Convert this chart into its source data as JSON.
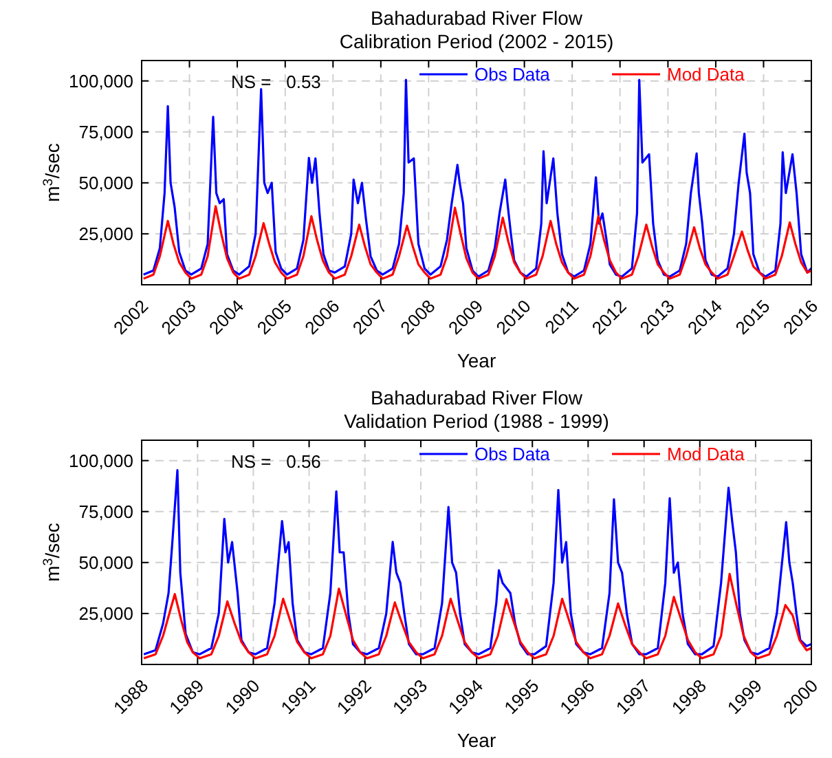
{
  "chart_data": [
    {
      "type": "line",
      "title": "Bahadurabad River Flow",
      "subtitle": "Calibration Period (2002 - 2015)",
      "xlabel": "Year",
      "ylabel": "m$^{3}$/sec",
      "annotations": [
        "NS =   0.53"
      ],
      "xlim": [
        "2002-01-01",
        "2016-01-01"
      ],
      "xticks": [
        "2002",
        "2003",
        "2004",
        "2005",
        "2006",
        "2007",
        "2008",
        "2009",
        "2010",
        "2011",
        "2012",
        "2013",
        "2014",
        "2015",
        "2016"
      ],
      "ylim": [
        0,
        110000
      ],
      "yticks": [
        {
          "value": 25000,
          "label": "25,000"
        },
        {
          "value": 50000,
          "label": "50,000"
        },
        {
          "value": 75000,
          "label": "75,000"
        },
        {
          "value": 100000,
          "label": "100,000"
        }
      ],
      "grid": true,
      "legend": "top right",
      "series": [
        {
          "name": "Obs Data",
          "color": "#0000ff",
          "x": [
            "2002-01-15",
            "2002-04-01",
            "2002-05-20",
            "2002-06-25",
            "2002-07-20",
            "2002-08-10",
            "2002-09-10",
            "2002-10-15",
            "2002-12-01",
            "2003-01-15",
            "2003-04-01",
            "2003-05-20",
            "2003-07-01",
            "2003-07-25",
            "2003-08-20",
            "2003-09-20",
            "2003-10-15",
            "2003-12-01",
            "2004-01-15",
            "2004-04-01",
            "2004-05-20",
            "2004-07-01",
            "2004-07-25",
            "2004-08-20",
            "2004-09-20",
            "2004-10-20",
            "2004-12-01",
            "2005-01-15",
            "2005-04-01",
            "2005-05-20",
            "2005-07-01",
            "2005-07-25",
            "2005-08-20",
            "2005-09-20",
            "2005-10-20",
            "2005-12-01",
            "2006-01-15",
            "2006-04-01",
            "2006-05-20",
            "2006-06-07",
            "2006-07-10",
            "2006-08-10",
            "2006-09-10",
            "2006-10-15",
            "2006-12-01",
            "2007-01-15",
            "2007-04-01",
            "2007-05-20",
            "2007-06-25",
            "2007-07-12",
            "2007-08-01",
            "2007-09-10",
            "2007-10-15",
            "2007-12-01",
            "2008-01-15",
            "2008-04-01",
            "2008-05-20",
            "2008-06-25",
            "2008-08-08",
            "2008-08-25",
            "2008-09-20",
            "2008-10-15",
            "2008-12-01",
            "2009-01-15",
            "2009-04-01",
            "2009-05-20",
            "2009-06-25",
            "2009-08-08",
            "2009-08-25",
            "2009-09-20",
            "2009-10-15",
            "2009-12-01",
            "2010-01-15",
            "2010-04-01",
            "2010-05-10",
            "2010-05-27",
            "2010-06-20",
            "2010-08-10",
            "2010-09-10",
            "2010-10-15",
            "2010-12-01",
            "2011-01-15",
            "2011-04-01",
            "2011-05-20",
            "2011-07-01",
            "2011-07-25",
            "2011-08-20",
            "2011-09-20",
            "2011-10-15",
            "2011-12-01",
            "2012-01-15",
            "2012-04-01",
            "2012-05-10",
            "2012-05-27",
            "2012-06-20",
            "2012-08-10",
            "2012-09-10",
            "2012-10-15",
            "2012-12-01",
            "2013-01-15",
            "2013-04-01",
            "2013-05-20",
            "2013-06-25",
            "2013-08-08",
            "2013-08-25",
            "2013-09-20",
            "2013-10-15",
            "2013-12-01",
            "2014-01-15",
            "2014-04-01",
            "2014-05-20",
            "2014-06-25",
            "2014-08-08",
            "2014-08-25",
            "2014-09-20",
            "2014-10-15",
            "2014-12-01",
            "2015-01-15",
            "2015-04-01",
            "2015-05-10",
            "2015-05-27",
            "2015-06-20",
            "2015-08-10",
            "2015-09-10",
            "2015-10-15",
            "2015-12-01",
            "2015-12-31"
          ],
          "values": [
            5000,
            7000,
            18000,
            45000,
            87600,
            50000,
            38000,
            16000,
            7000,
            5000,
            8000,
            20000,
            82400,
            45000,
            40000,
            42000,
            15000,
            7000,
            5000,
            9000,
            25000,
            96000,
            50000,
            45000,
            50000,
            16000,
            8000,
            5000,
            8000,
            22000,
            62200,
            50000,
            62000,
            35000,
            15000,
            7000,
            6000,
            9000,
            25000,
            51600,
            40000,
            50000,
            32000,
            14000,
            7000,
            5000,
            8000,
            20000,
            45000,
            100500,
            60000,
            62000,
            20000,
            8000,
            5000,
            9000,
            22000,
            40000,
            58800,
            50000,
            40000,
            18000,
            7000,
            4000,
            7000,
            18000,
            35000,
            51600,
            40000,
            25000,
            12000,
            6000,
            4000,
            8000,
            30000,
            65500,
            40000,
            62000,
            35000,
            15000,
            6000,
            4000,
            7000,
            20000,
            52700,
            30000,
            35000,
            22000,
            10000,
            5000,
            4000,
            8000,
            35000,
            100500,
            60000,
            64000,
            30000,
            12000,
            5000,
            4000,
            7000,
            20000,
            45000,
            64400,
            45000,
            30000,
            12000,
            5000,
            4000,
            8000,
            25000,
            50000,
            74100,
            55000,
            45000,
            15000,
            6000,
            4000,
            7000,
            30000,
            65000,
            45000,
            64000,
            45000,
            15000,
            6000,
            8000
          ]
        },
        {
          "name": "Mod Data",
          "color": "#ff0000",
          "x": [
            "2002-01-15",
            "2002-04-01",
            "2002-05-20",
            "2002-07-20",
            "2002-09-01",
            "2002-10-15",
            "2002-12-01",
            "2003-01-15",
            "2003-04-01",
            "2003-05-20",
            "2003-07-20",
            "2003-09-01",
            "2003-10-15",
            "2003-12-01",
            "2004-01-15",
            "2004-04-01",
            "2004-05-20",
            "2004-07-20",
            "2004-09-01",
            "2004-10-15",
            "2004-12-01",
            "2005-01-15",
            "2005-04-01",
            "2005-05-20",
            "2005-07-20",
            "2005-09-01",
            "2005-10-15",
            "2005-12-01",
            "2006-01-15",
            "2006-04-01",
            "2006-05-20",
            "2006-07-20",
            "2006-09-01",
            "2006-10-15",
            "2006-12-01",
            "2007-01-15",
            "2007-04-01",
            "2007-05-20",
            "2007-07-20",
            "2007-09-01",
            "2007-10-15",
            "2007-12-01",
            "2008-01-15",
            "2008-04-01",
            "2008-05-20",
            "2008-07-20",
            "2008-09-01",
            "2008-10-15",
            "2008-12-01",
            "2009-01-15",
            "2009-04-01",
            "2009-05-20",
            "2009-07-20",
            "2009-09-01",
            "2009-10-15",
            "2009-12-01",
            "2010-01-15",
            "2010-04-01",
            "2010-05-20",
            "2010-07-20",
            "2010-09-01",
            "2010-10-15",
            "2010-12-01",
            "2011-01-15",
            "2011-04-01",
            "2011-05-20",
            "2011-07-20",
            "2011-09-01",
            "2011-10-15",
            "2011-12-01",
            "2012-01-15",
            "2012-04-01",
            "2012-05-20",
            "2012-07-20",
            "2012-09-01",
            "2012-10-15",
            "2012-12-01",
            "2013-01-15",
            "2013-04-01",
            "2013-05-20",
            "2013-07-20",
            "2013-09-01",
            "2013-10-15",
            "2013-12-01",
            "2014-01-15",
            "2014-04-01",
            "2014-05-20",
            "2014-07-20",
            "2014-09-01",
            "2014-10-15",
            "2014-12-01",
            "2015-01-15",
            "2015-04-01",
            "2015-05-20",
            "2015-07-20",
            "2015-09-01",
            "2015-10-15",
            "2015-12-01",
            "2015-12-31"
          ],
          "values": [
            3000,
            5000,
            14000,
            31300,
            20000,
            11000,
            6000,
            3000,
            5000,
            14000,
            38500,
            25000,
            13000,
            6000,
            3000,
            5000,
            14000,
            30200,
            20000,
            11000,
            6000,
            3000,
            5000,
            14000,
            33600,
            22000,
            12000,
            6000,
            3000,
            5000,
            14000,
            29500,
            19000,
            10000,
            6000,
            3000,
            5000,
            14000,
            29000,
            19000,
            10000,
            6000,
            3000,
            5000,
            14000,
            37800,
            25000,
            13000,
            6000,
            3000,
            5000,
            14000,
            32900,
            21000,
            11000,
            6000,
            3000,
            5000,
            14000,
            31300,
            20000,
            11000,
            6000,
            3000,
            5000,
            14000,
            33600,
            22000,
            12000,
            6000,
            3000,
            5000,
            14000,
            29500,
            19000,
            10000,
            6000,
            3000,
            5000,
            14000,
            28200,
            18000,
            10000,
            6000,
            3000,
            5000,
            14000,
            26100,
            17000,
            9000,
            6000,
            3000,
            5000,
            14000,
            30600,
            20000,
            11000,
            6000,
            7000
          ]
        }
      ]
    },
    {
      "type": "line",
      "title": "Bahadurabad River Flow",
      "subtitle": "Validation Period (1988 - 1999)",
      "xlabel": "Year",
      "ylabel": "m$^{3}$/sec",
      "annotations": [
        "NS =   0.56"
      ],
      "xlim": [
        "1988-01-01",
        "2000-01-01"
      ],
      "xticks": [
        "1988",
        "1989",
        "1990",
        "1991",
        "1992",
        "1993",
        "1994",
        "1995",
        "1996",
        "1997",
        "1998",
        "1999",
        "2000"
      ],
      "ylim": [
        0,
        110000
      ],
      "yticks": [
        {
          "value": 25000,
          "label": "25,000"
        },
        {
          "value": 50000,
          "label": "50,000"
        },
        {
          "value": 75000,
          "label": "75,000"
        },
        {
          "value": 100000,
          "label": "100,000"
        }
      ],
      "grid": true,
      "legend": "top right",
      "series": [
        {
          "name": "Obs Data",
          "color": "#0000ff",
          "x": [
            "1988-01-15",
            "1988-04-01",
            "1988-05-20",
            "1988-06-25",
            "1988-07-20",
            "1988-08-22",
            "1988-09-10",
            "1988-10-15",
            "1988-12-01",
            "1989-01-15",
            "1989-04-01",
            "1989-05-20",
            "1989-06-25",
            "1989-07-20",
            "1989-08-15",
            "1989-09-20",
            "1989-10-15",
            "1989-12-01",
            "1990-01-15",
            "1990-04-01",
            "1990-05-20",
            "1990-07-08",
            "1990-07-30",
            "1990-08-20",
            "1990-09-15",
            "1990-10-15",
            "1990-12-01",
            "1991-01-15",
            "1991-04-01",
            "1991-05-20",
            "1991-06-28",
            "1991-07-20",
            "1991-08-15",
            "1991-09-15",
            "1991-10-15",
            "1991-12-01",
            "1992-01-15",
            "1992-04-01",
            "1992-05-20",
            "1992-07-01",
            "1992-07-25",
            "1992-08-20",
            "1992-09-15",
            "1992-10-15",
            "1992-12-01",
            "1993-01-15",
            "1993-04-01",
            "1993-05-20",
            "1993-07-01",
            "1993-07-25",
            "1993-08-20",
            "1993-09-15",
            "1993-10-15",
            "1993-12-01",
            "1994-01-15",
            "1994-04-01",
            "1994-05-10",
            "1994-05-27",
            "1994-06-20",
            "1994-08-10",
            "1994-09-10",
            "1994-10-15",
            "1994-12-01",
            "1995-01-15",
            "1995-04-01",
            "1995-05-20",
            "1995-06-20",
            "1995-07-15",
            "1995-08-10",
            "1995-09-10",
            "1995-10-15",
            "1995-12-01",
            "1996-01-15",
            "1996-04-01",
            "1996-05-20",
            "1996-06-18",
            "1996-07-15",
            "1996-08-10",
            "1996-09-10",
            "1996-10-15",
            "1996-12-01",
            "1997-01-15",
            "1997-04-01",
            "1997-05-20",
            "1997-06-18",
            "1997-07-15",
            "1997-08-10",
            "1997-09-10",
            "1997-10-15",
            "1997-12-01",
            "1998-01-15",
            "1998-04-01",
            "1998-05-20",
            "1998-07-08",
            "1998-08-01",
            "1998-08-25",
            "1998-09-20",
            "1998-10-20",
            "1998-12-01",
            "1999-01-15",
            "1999-04-01",
            "1999-05-20",
            "1999-07-20",
            "1999-08-10",
            "1999-09-01",
            "1999-09-25",
            "1999-10-20",
            "1999-12-01",
            "1999-12-31"
          ],
          "values": [
            5000,
            7000,
            20000,
            35000,
            60000,
            95300,
            45000,
            15000,
            6000,
            5000,
            8000,
            25000,
            71400,
            50000,
            60000,
            35000,
            12000,
            6000,
            5000,
            8000,
            30000,
            70300,
            55000,
            60000,
            30000,
            12000,
            6000,
            5000,
            8000,
            35000,
            84900,
            55000,
            55000,
            25000,
            10000,
            6000,
            5000,
            8000,
            25000,
            60100,
            45000,
            40000,
            25000,
            10000,
            5000,
            5000,
            8000,
            30000,
            77200,
            50000,
            45000,
            25000,
            10000,
            6000,
            5000,
            8000,
            30000,
            46200,
            40000,
            35000,
            20000,
            10000,
            5000,
            5000,
            9000,
            40000,
            85600,
            50000,
            60000,
            25000,
            10000,
            6000,
            5000,
            8000,
            35000,
            81000,
            50000,
            45000,
            25000,
            10000,
            5000,
            5000,
            8000,
            40000,
            81500,
            45000,
            50000,
            25000,
            10000,
            5000,
            5000,
            9000,
            40000,
            86700,
            70000,
            55000,
            25000,
            12000,
            6000,
            5000,
            8000,
            25000,
            69800,
            50000,
            40000,
            25000,
            12000,
            9000,
            10000
          ]
        },
        {
          "name": "Mod Data",
          "color": "#ff0000",
          "x": [
            "1988-01-15",
            "1988-04-01",
            "1988-05-20",
            "1988-08-05",
            "1988-09-15",
            "1988-10-25",
            "1988-12-01",
            "1989-01-15",
            "1989-04-01",
            "1989-05-20",
            "1989-07-15",
            "1989-09-01",
            "1989-10-15",
            "1989-12-01",
            "1990-01-15",
            "1990-04-01",
            "1990-05-20",
            "1990-07-15",
            "1990-09-01",
            "1990-10-15",
            "1990-12-01",
            "1991-01-15",
            "1991-04-01",
            "1991-05-20",
            "1991-07-15",
            "1991-09-01",
            "1991-10-15",
            "1991-12-01",
            "1992-01-15",
            "1992-04-01",
            "1992-05-20",
            "1992-07-15",
            "1992-09-01",
            "1992-10-15",
            "1992-12-01",
            "1993-01-15",
            "1993-04-01",
            "1993-05-20",
            "1993-07-15",
            "1993-09-01",
            "1993-10-15",
            "1993-12-01",
            "1994-01-15",
            "1994-04-01",
            "1994-05-20",
            "1994-07-15",
            "1994-09-01",
            "1994-10-15",
            "1994-12-01",
            "1995-01-15",
            "1995-04-01",
            "1995-05-20",
            "1995-07-15",
            "1995-09-01",
            "1995-10-15",
            "1995-12-01",
            "1996-01-15",
            "1996-04-01",
            "1996-05-20",
            "1996-07-15",
            "1996-09-01",
            "1996-10-15",
            "1996-12-01",
            "1997-01-15",
            "1997-04-01",
            "1997-05-20",
            "1997-07-15",
            "1997-09-01",
            "1997-10-15",
            "1997-12-01",
            "1998-01-15",
            "1998-04-01",
            "1998-05-20",
            "1998-07-15",
            "1998-09-01",
            "1998-10-15",
            "1998-12-01",
            "1999-01-15",
            "1999-04-01",
            "1999-05-20",
            "1999-07-15",
            "1999-09-01",
            "1999-10-15",
            "1999-12-01",
            "1999-12-31"
          ],
          "values": [
            3000,
            5000,
            14000,
            34500,
            22000,
            11000,
            6000,
            3000,
            5000,
            14000,
            30900,
            20000,
            11000,
            6000,
            3000,
            5000,
            14000,
            32200,
            21000,
            11000,
            6000,
            3000,
            5000,
            14000,
            37200,
            24000,
            12000,
            6000,
            3000,
            5000,
            14000,
            30400,
            20000,
            11000,
            6000,
            3000,
            5000,
            14000,
            32200,
            21000,
            11000,
            6000,
            3000,
            5000,
            14000,
            32000,
            21000,
            11000,
            6000,
            3000,
            5000,
            14000,
            32200,
            21000,
            11000,
            6000,
            3000,
            5000,
            14000,
            29900,
            19000,
            10000,
            6000,
            3000,
            5000,
            14000,
            33100,
            22000,
            12000,
            6000,
            3000,
            5000,
            14000,
            44400,
            28000,
            14000,
            6000,
            3000,
            5000,
            14000,
            29100,
            24000,
            12000,
            7000,
            8000
          ]
        }
      ]
    }
  ]
}
